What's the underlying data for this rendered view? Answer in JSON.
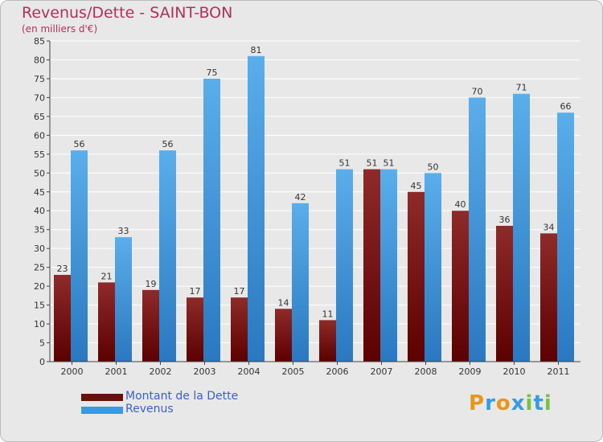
{
  "chart_data": {
    "type": "bar",
    "title": "Revenus/Dette - SAINT-BON",
    "subtitle": "(en milliers d'€)",
    "categories": [
      "2000",
      "2001",
      "2002",
      "2003",
      "2004",
      "2005",
      "2006",
      "2007",
      "2008",
      "2009",
      "2010",
      "2011"
    ],
    "series": [
      {
        "name": "Montant de la Dette",
        "color": "#8a1a1a",
        "values": [
          23,
          21,
          19,
          17,
          17,
          14,
          11,
          51,
          45,
          40,
          36,
          34
        ]
      },
      {
        "name": "Revenus",
        "color": "#3a9ae0",
        "values": [
          56,
          33,
          56,
          75,
          81,
          42,
          51,
          51,
          50,
          70,
          71,
          66
        ]
      }
    ],
    "ylim": [
      0,
      85
    ],
    "yticks": [
      0,
      5,
      10,
      15,
      20,
      25,
      30,
      35,
      40,
      45,
      50,
      55,
      60,
      65,
      70,
      75,
      80,
      85
    ],
    "grid": true,
    "legend": "bottom-left"
  },
  "logo": {
    "letters": [
      "P",
      "r",
      "o",
      "x",
      "i",
      "t",
      "i"
    ],
    "colors": [
      "#e8961e",
      "#3a9ae0",
      "#e8961e",
      "#3a9ae0",
      "#7ac143",
      "#3a9ae0",
      "#7ac143"
    ]
  }
}
